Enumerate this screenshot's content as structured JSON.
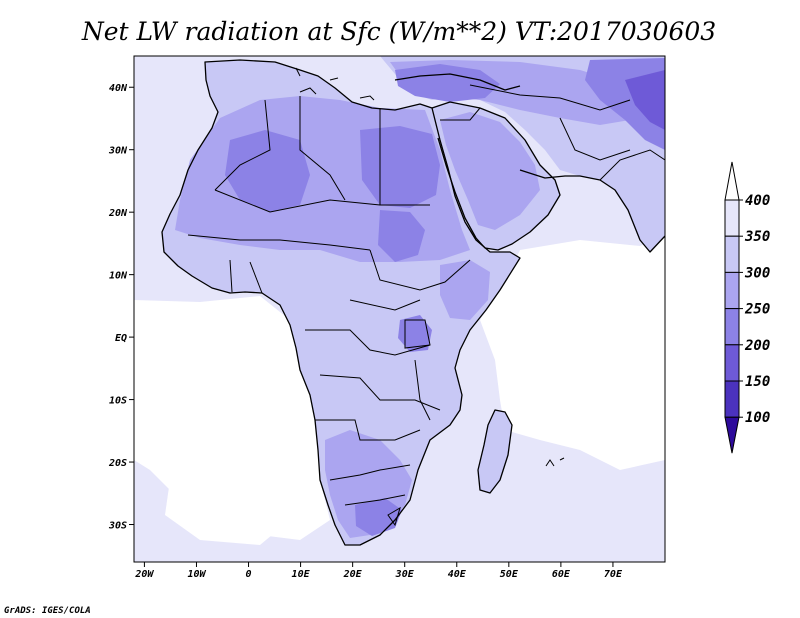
{
  "title": "Net LW radiation at Sfc (W/m**2) VT:2017030603",
  "credit": "GrADS: IGES/COLA",
  "map": {
    "lon_ticks": [
      "20W",
      "10W",
      "0",
      "10E",
      "20E",
      "30E",
      "40E",
      "50E",
      "60E",
      "70E"
    ],
    "lat_ticks": [
      "40N",
      "30N",
      "20N",
      "10N",
      "EQ",
      "10S",
      "20S",
      "30S"
    ],
    "lon_range": [
      -22,
      80
    ],
    "lat_range": [
      -36,
      45
    ]
  },
  "colorbar": {
    "levels": [
      "400",
      "350",
      "300",
      "250",
      "200",
      "150",
      "100"
    ],
    "colors": [
      "#e6e6fa",
      "#c8c8f5",
      "#aba5f0",
      "#8c82e6",
      "#6e5ad7",
      "#4b32be",
      "#2d0a9b"
    ],
    "over_color": "#ffffff",
    "under_color": "#2d0a9b"
  },
  "fill_colors": {
    "ocean": "#e6e6fa",
    "ocean_clear": "#ffffff",
    "land_light": "#c8c8f5",
    "land_mid": "#aba5f0",
    "land_dark": "#8c82e6",
    "land_darker": "#6e5ad7"
  }
}
